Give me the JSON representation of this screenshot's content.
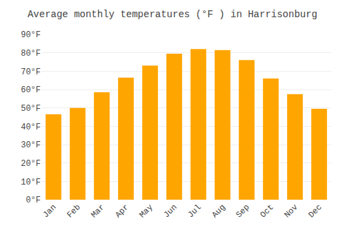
{
  "chart_data": {
    "type": "bar",
    "title": "Average monthly temperatures (°F ) in Harrisonburg",
    "categories": [
      "Jan",
      "Feb",
      "Mar",
      "Apr",
      "May",
      "Jun",
      "Jul",
      "Aug",
      "Sep",
      "Oct",
      "Nov",
      "Dec"
    ],
    "values": [
      46.5,
      50.0,
      58.5,
      66.5,
      73.0,
      79.5,
      82.0,
      81.5,
      76.0,
      66.0,
      57.5,
      49.5
    ],
    "color": "#FFA500",
    "ylim": [
      0,
      90
    ],
    "yticks": [
      {
        "value": 0,
        "label": "0°F"
      },
      {
        "value": 10,
        "label": "10°F"
      },
      {
        "value": 20,
        "label": "20°F"
      },
      {
        "value": 30,
        "label": "30°F"
      },
      {
        "value": 40,
        "label": "40°F"
      },
      {
        "value": 50,
        "label": "50°F"
      },
      {
        "value": 60,
        "label": "60°F"
      },
      {
        "value": 70,
        "label": "70°F"
      },
      {
        "value": 80,
        "label": "80°F"
      },
      {
        "value": 90,
        "label": "90°F"
      }
    ],
    "grid": true
  }
}
